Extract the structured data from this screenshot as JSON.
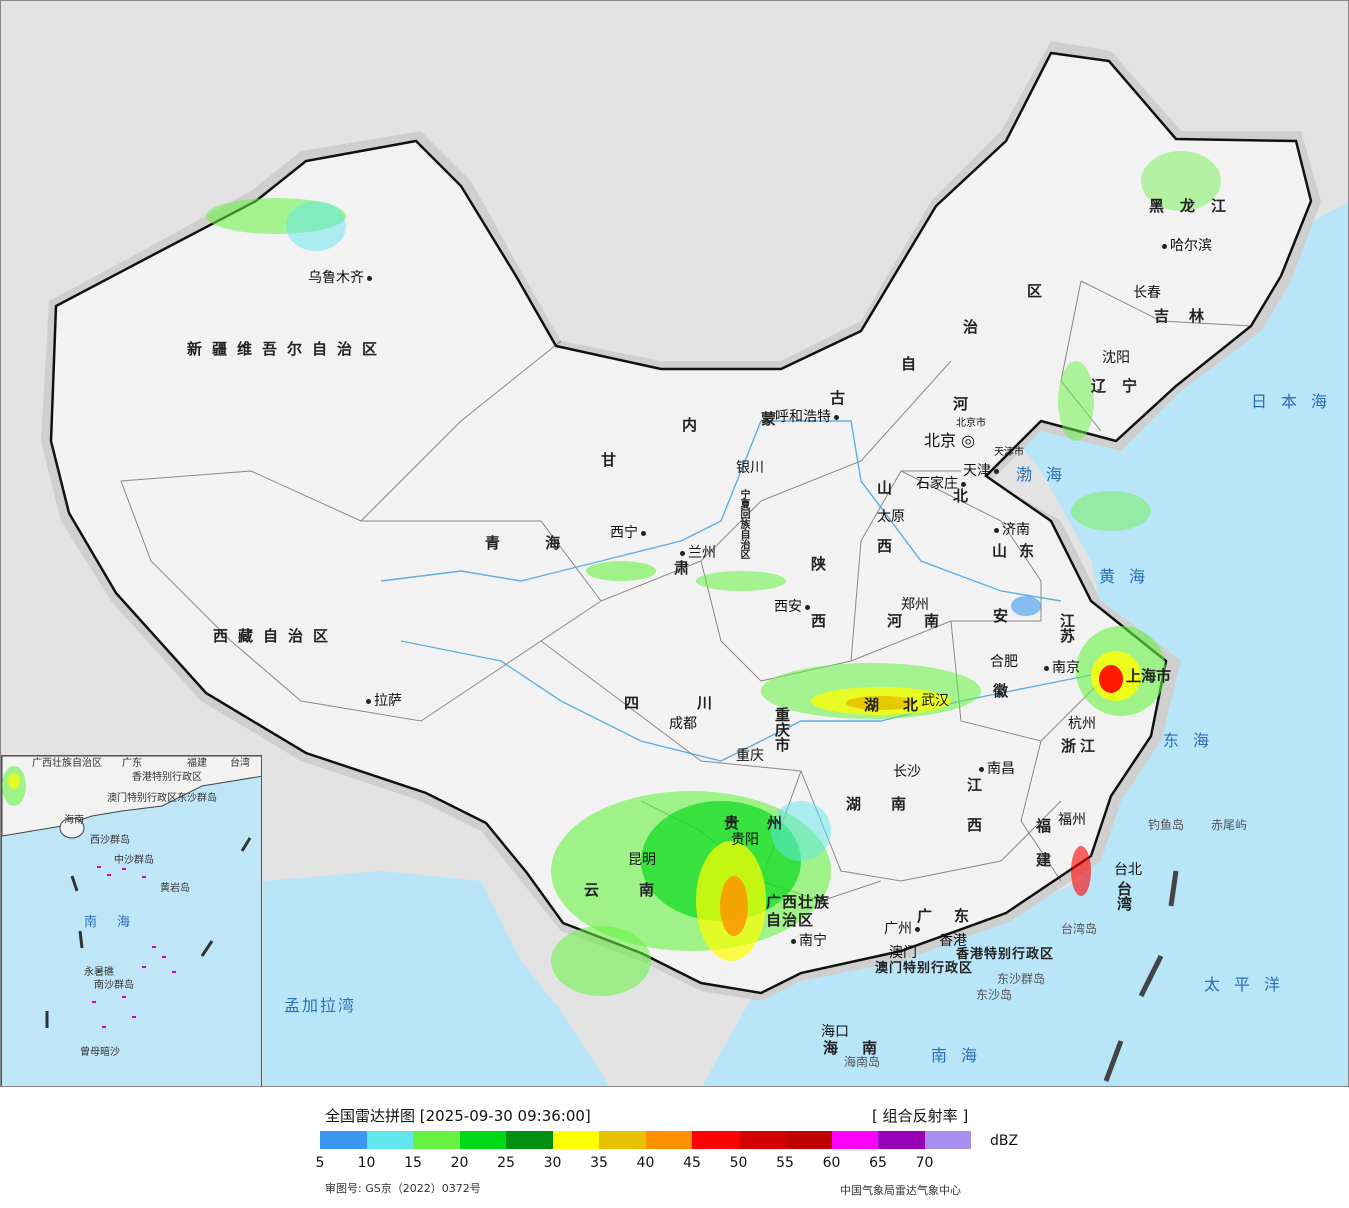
{
  "map": {
    "provinces": [
      {
        "id": "xinjiang",
        "name": "新疆维吾尔自治区"
      },
      {
        "id": "xizang",
        "name": "西藏自治区"
      },
      {
        "id": "qinghai",
        "name": "青  海"
      },
      {
        "id": "gansu",
        "name": "甘"
      },
      {
        "id": "gansu2",
        "name": "肃"
      },
      {
        "id": "neimenggu1",
        "name": "内"
      },
      {
        "id": "neimenggu2",
        "name": "蒙"
      },
      {
        "id": "neimenggu3",
        "name": "古"
      },
      {
        "id": "neimenggu4",
        "name": "自"
      },
      {
        "id": "neimenggu5",
        "name": "治"
      },
      {
        "id": "neimenggu6",
        "name": "区"
      },
      {
        "id": "heilongjiang",
        "name": "黑龙江"
      },
      {
        "id": "jilin",
        "name": "吉林"
      },
      {
        "id": "liaoning",
        "name": "辽宁"
      },
      {
        "id": "hebei1",
        "name": "河"
      },
      {
        "id": "hebei2",
        "name": "北"
      },
      {
        "id": "shanxi1",
        "name": "山"
      },
      {
        "id": "shanxi2",
        "name": "西"
      },
      {
        "id": "shandong",
        "name": "山东"
      },
      {
        "id": "shaanxi1",
        "name": "陕"
      },
      {
        "id": "shaanxi2",
        "name": "西"
      },
      {
        "id": "henan",
        "name": "河南"
      },
      {
        "id": "jiangsu",
        "name": "江苏"
      },
      {
        "id": "anhui1",
        "name": "安"
      },
      {
        "id": "anhui2",
        "name": "徽"
      },
      {
        "id": "hubei",
        "name": "湖北"
      },
      {
        "id": "sichuan",
        "name": "四川"
      },
      {
        "id": "chongqing",
        "name": "重庆市"
      },
      {
        "id": "zhejiang",
        "name": "浙江"
      },
      {
        "id": "jiangxi1",
        "name": "江"
      },
      {
        "id": "jiangxi2",
        "name": "西"
      },
      {
        "id": "hunan",
        "name": "湖南"
      },
      {
        "id": "fujian1",
        "name": "福"
      },
      {
        "id": "fujian2",
        "name": "建"
      },
      {
        "id": "guizhou",
        "name": "贵州"
      },
      {
        "id": "yunnan",
        "name": "云南"
      },
      {
        "id": "guangxi",
        "name": "广西壮族自治区"
      },
      {
        "id": "guangdong",
        "name": "广东"
      },
      {
        "id": "taiwan",
        "name": "台湾"
      },
      {
        "id": "hainan",
        "name": "海南"
      },
      {
        "id": "ningxia",
        "name": "宁夏回族自治区"
      },
      {
        "id": "shanghai",
        "name": "上海市"
      },
      {
        "id": "hk",
        "name": "香港特别行政区"
      },
      {
        "id": "macau",
        "name": "澳门特别行政区"
      }
    ],
    "cities": [
      {
        "id": "urumqi",
        "name": "乌鲁木齐"
      },
      {
        "id": "lhasa",
        "name": "拉萨"
      },
      {
        "id": "xining",
        "name": "西宁"
      },
      {
        "id": "lanzhou",
        "name": "兰州"
      },
      {
        "id": "yinchuan",
        "name": "银川"
      },
      {
        "id": "hohhot",
        "name": "呼和浩特"
      },
      {
        "id": "beijing",
        "name": "北京"
      },
      {
        "id": "beijing_city",
        "name": "北京市"
      },
      {
        "id": "tianjin",
        "name": "天津"
      },
      {
        "id": "tianjin_city",
        "name": "天津市"
      },
      {
        "id": "shijiazhuang",
        "name": "石家庄"
      },
      {
        "id": "taiyuan",
        "name": "太原"
      },
      {
        "id": "jinan",
        "name": "济南"
      },
      {
        "id": "zhengzhou",
        "name": "郑州"
      },
      {
        "id": "xian",
        "name": "西安"
      },
      {
        "id": "hefei",
        "name": "合肥"
      },
      {
        "id": "nanjing",
        "name": "南京"
      },
      {
        "id": "wuhan",
        "name": "武汉"
      },
      {
        "id": "chengdu",
        "name": "成都"
      },
      {
        "id": "chongqing_c",
        "name": "重庆"
      },
      {
        "id": "hangzhou",
        "name": "杭州"
      },
      {
        "id": "nanchang",
        "name": "南昌"
      },
      {
        "id": "changsha",
        "name": "长沙"
      },
      {
        "id": "fuzhou",
        "name": "福州"
      },
      {
        "id": "guiyang",
        "name": "贵阳"
      },
      {
        "id": "kunming",
        "name": "昆明"
      },
      {
        "id": "nanning",
        "name": "南宁"
      },
      {
        "id": "guangzhou",
        "name": "广州"
      },
      {
        "id": "hongkong",
        "name": "香港"
      },
      {
        "id": "aomen",
        "name": "澳门"
      },
      {
        "id": "haikou",
        "name": "海口"
      },
      {
        "id": "taibei",
        "name": "台北"
      },
      {
        "id": "shenyang",
        "name": "沈阳"
      },
      {
        "id": "changchun",
        "name": "长春"
      },
      {
        "id": "harbin",
        "name": "哈尔滨"
      }
    ],
    "seas": [
      {
        "id": "japan_sea",
        "name": "日本海"
      },
      {
        "id": "bohai",
        "name": "渤海"
      },
      {
        "id": "huanghai",
        "name": "黄海"
      },
      {
        "id": "donghai",
        "name": "东海"
      },
      {
        "id": "taipingyang",
        "name": "太平洋"
      },
      {
        "id": "nanhai",
        "name": "南海"
      },
      {
        "id": "bengal",
        "name": "孟加拉湾"
      }
    ],
    "islands": [
      {
        "id": "diaoyu",
        "name": "钓鱼岛"
      },
      {
        "id": "chiwei",
        "name": "赤尾屿"
      },
      {
        "id": "taiwan_isl",
        "name": "台湾岛"
      },
      {
        "id": "dongsha_qd",
        "name": "东沙群岛"
      },
      {
        "id": "dongsha_d",
        "name": "东沙岛"
      },
      {
        "id": "hainan_isl",
        "name": "海南岛"
      }
    ],
    "inset_labels": [
      {
        "id": "i_guangxi",
        "name": "广西壮族自治区"
      },
      {
        "id": "i_guangdong",
        "name": "广东"
      },
      {
        "id": "i_fujian",
        "name": "福建"
      },
      {
        "id": "i_taiwan",
        "name": "台湾"
      },
      {
        "id": "i_hk",
        "name": "香港特别行政区"
      },
      {
        "id": "i_macau",
        "name": "澳门特别行政区"
      },
      {
        "id": "i_dongsha",
        "name": "东沙群岛"
      },
      {
        "id": "i_hainan",
        "name": "海南"
      },
      {
        "id": "i_xisha",
        "name": "西沙群岛"
      },
      {
        "id": "i_zhongsha",
        "name": "中沙群岛"
      },
      {
        "id": "i_huangyan",
        "name": "黄岩岛"
      },
      {
        "id": "i_nanhai",
        "name": "南海"
      },
      {
        "id": "i_nansha",
        "name": "南沙群岛"
      },
      {
        "id": "i_yongshu",
        "name": "永暑礁"
      },
      {
        "id": "i_zengmu",
        "name": "曾母暗沙"
      }
    ]
  },
  "legend": {
    "title": "全国雷达拼图 [2025-09-30 09:36:00]",
    "product": "[ 组合反射率 ]",
    "unit": "dBZ",
    "review_no": "审图号: GS京（2022）0372号",
    "org": "中国气象局雷达气象中心",
    "colors": [
      "#3c97f0",
      "#62e5ec",
      "#66f240",
      "#00d818",
      "#009010",
      "#ffff00",
      "#e6c200",
      "#ff9000",
      "#ff0000",
      "#d60000",
      "#c00000",
      "#ff00ff",
      "#9800b8",
      "#aa90ee"
    ],
    "ticks": [
      "5",
      "10",
      "15",
      "20",
      "25",
      "30",
      "35",
      "40",
      "45",
      "50",
      "55",
      "60",
      "65",
      "70"
    ]
  }
}
